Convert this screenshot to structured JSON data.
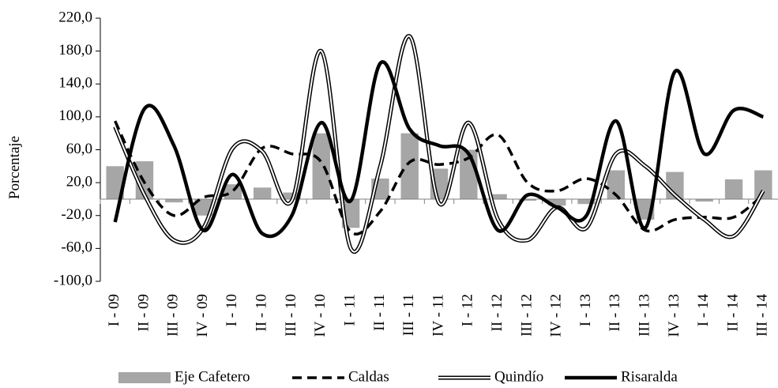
{
  "chart_data": {
    "type": "bar_line",
    "y_axis_label": "Porcentaje",
    "categories": [
      "I - 09",
      "II - 09",
      "III - 09",
      "IV - 09",
      "I - 10",
      "II - 10",
      "III - 10",
      "IV - 10",
      "I - 11",
      "II - 11",
      "III - 11",
      "IV - 11",
      "I - 12",
      "II - 12",
      "III - 12",
      "IV - 12",
      "I - 13",
      "II - 13",
      "III - 13",
      "IV - 13",
      "I - 14",
      "II - 14",
      "III - 14"
    ],
    "series": [
      {
        "name": "Eje Cafetero",
        "kind": "bar",
        "color": "#a6a6a6",
        "values": [
          40,
          46,
          -4,
          -20,
          18,
          14,
          8,
          80,
          -35,
          25,
          80,
          37,
          60,
          6,
          -2,
          -8,
          -6,
          35,
          -25,
          33,
          -3,
          24,
          35
        ]
      },
      {
        "name": "Caldas",
        "kind": "dashed",
        "color": "#000000",
        "values": [
          95,
          20,
          -20,
          2,
          10,
          62,
          55,
          45,
          -40,
          -15,
          45,
          42,
          50,
          78,
          20,
          10,
          25,
          5,
          -38,
          -25,
          -22,
          -22,
          5
        ]
      },
      {
        "name": "Quindío",
        "kind": "double",
        "color": "#000000",
        "values": [
          88,
          5,
          -50,
          -35,
          62,
          58,
          -2,
          180,
          -60,
          40,
          198,
          -5,
          93,
          -25,
          -50,
          -10,
          -35,
          55,
          40,
          5,
          -25,
          -45,
          10
        ]
      },
      {
        "name": "Risaralda",
        "kind": "solid",
        "color": "#000000",
        "values": [
          -28,
          110,
          65,
          -38,
          30,
          -42,
          -20,
          93,
          -2,
          165,
          85,
          65,
          55,
          -38,
          5,
          -10,
          -20,
          95,
          -35,
          155,
          55,
          108,
          100
        ]
      }
    ],
    "ylim": [
      -100,
      220
    ],
    "yticks": [
      {
        "value": -100,
        "label": "-100,0"
      },
      {
        "value": -60,
        "label": "-60,0"
      },
      {
        "value": -20,
        "label": "-20,0"
      },
      {
        "value": 20,
        "label": "20,0"
      },
      {
        "value": 60,
        "label": "60,0"
      },
      {
        "value": 100,
        "label": "100,0"
      },
      {
        "value": 140,
        "label": "140,0"
      },
      {
        "value": 180,
        "label": "180,0"
      },
      {
        "value": 220,
        "label": "220,0"
      }
    ]
  }
}
